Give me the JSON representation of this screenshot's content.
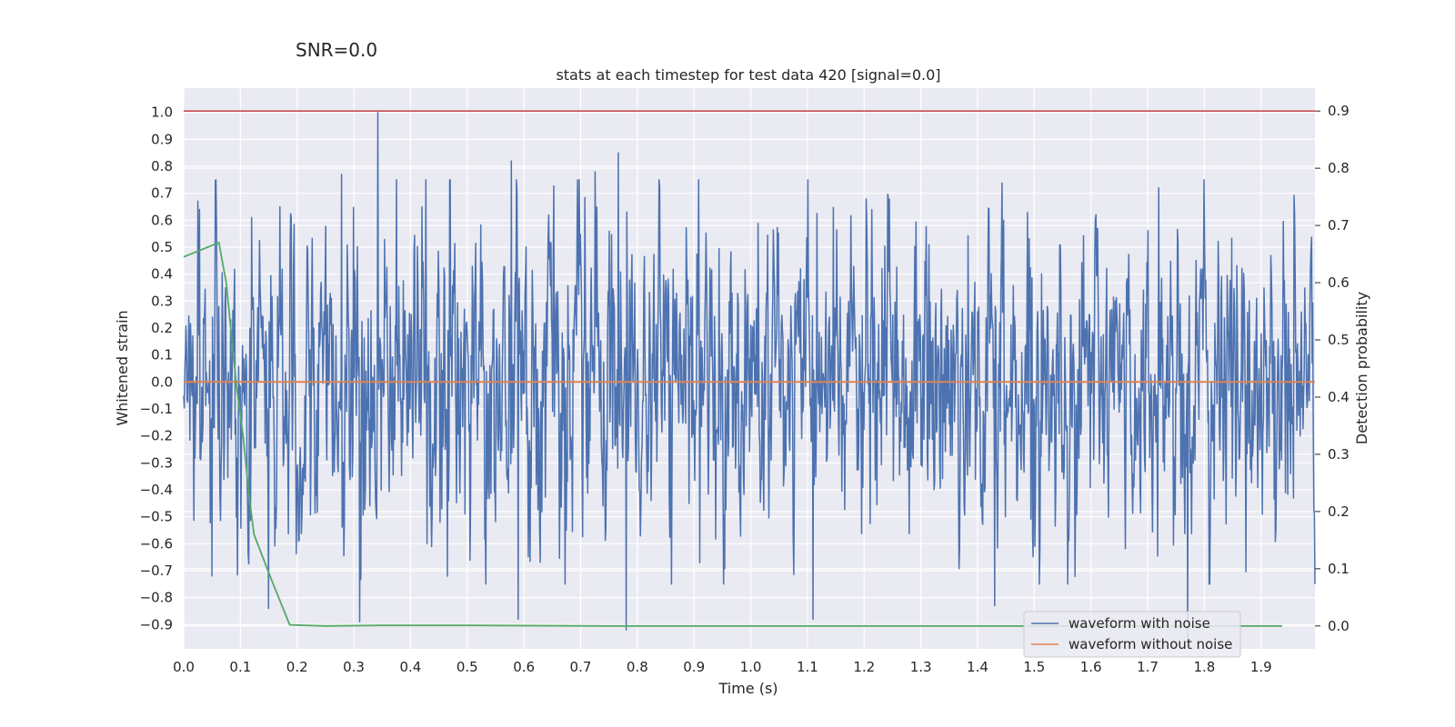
{
  "snr_label": "SNR=0.0",
  "chart_data": {
    "type": "line",
    "title": "stats at each timestep for test data 420 [signal=0.0]",
    "xlabel": "Time (s)",
    "ylabel_left": "Whitened strain",
    "ylabel_right": "Detection probability",
    "xlim": [
      0.0,
      1.995
    ],
    "ylim_left": [
      -0.99,
      1.09
    ],
    "ylim_right": [
      -0.04,
      0.94
    ],
    "x_ticks": [
      "0.0",
      "0.1",
      "0.2",
      "0.3",
      "0.4",
      "0.5",
      "0.6",
      "0.7",
      "0.8",
      "0.9",
      "1.0",
      "1.1",
      "1.2",
      "1.3",
      "1.4",
      "1.5",
      "1.6",
      "1.7",
      "1.8",
      "1.9"
    ],
    "y_ticks_left": [
      "1.0",
      "0.9",
      "0.8",
      "0.7",
      "0.6",
      "0.5",
      "0.4",
      "0.3",
      "0.2",
      "0.1",
      "0.0",
      "−0.1",
      "−0.2",
      "−0.3",
      "−0.4",
      "−0.5",
      "−0.6",
      "−0.7",
      "−0.8",
      "−0.9"
    ],
    "y_ticks_right": [
      "0.9",
      "0.8",
      "0.7",
      "0.6",
      "0.5",
      "0.4",
      "0.3",
      "0.2",
      "0.1",
      "0.0"
    ],
    "threshold": {
      "axis": "right",
      "value": 0.9,
      "color": "#c44e52"
    },
    "series": [
      {
        "name": "waveform with noise",
        "axis": "left",
        "color": "#4c72b0",
        "kind": "noise",
        "n_points": 2000,
        "approx_std": 0.28,
        "peaks": [
          {
            "x": 0.028,
            "y": 0.64
          },
          {
            "x": 0.05,
            "y": -0.72
          },
          {
            "x": 0.12,
            "y": 0.61
          },
          {
            "x": 0.15,
            "y": -0.84
          },
          {
            "x": 0.17,
            "y": 0.65
          },
          {
            "x": 0.278,
            "y": 0.77
          },
          {
            "x": 0.31,
            "y": -0.89
          },
          {
            "x": 0.342,
            "y": 1.0
          },
          {
            "x": 0.578,
            "y": 0.82
          },
          {
            "x": 0.59,
            "y": -0.88
          },
          {
            "x": 0.726,
            "y": 0.78
          },
          {
            "x": 0.766,
            "y": 0.85
          },
          {
            "x": 0.78,
            "y": -0.92
          },
          {
            "x": 1.11,
            "y": -0.88
          },
          {
            "x": 1.43,
            "y": -0.83
          },
          {
            "x": 1.77,
            "y": -0.95
          },
          {
            "x": 1.72,
            "y": 0.72
          }
        ]
      },
      {
        "name": "waveform without noise",
        "axis": "left",
        "color": "#dd8452",
        "x": [
          0.0,
          1.995
        ],
        "y": [
          0.0,
          0.0
        ]
      },
      {
        "name": "detection probability",
        "axis": "right",
        "color": "#55a868",
        "x": [
          0.0,
          0.062,
          0.075,
          0.093,
          0.105,
          0.115,
          0.124,
          0.155,
          0.187,
          0.25,
          0.35,
          0.5,
          0.75,
          1.0,
          1.25,
          1.5,
          1.75,
          1.937
        ],
        "y": [
          0.645,
          0.67,
          0.6,
          0.42,
          0.33,
          0.23,
          0.16,
          0.08,
          0.002,
          0.0,
          0.001,
          0.001,
          0.0,
          0.0,
          0.0,
          0.0,
          0.0,
          0.0
        ]
      }
    ],
    "legend": {
      "position": "lower-right",
      "entries": [
        {
          "label": "waveform with noise",
          "color": "#4c72b0"
        },
        {
          "label": "waveform without noise",
          "color": "#dd8452"
        }
      ]
    }
  }
}
